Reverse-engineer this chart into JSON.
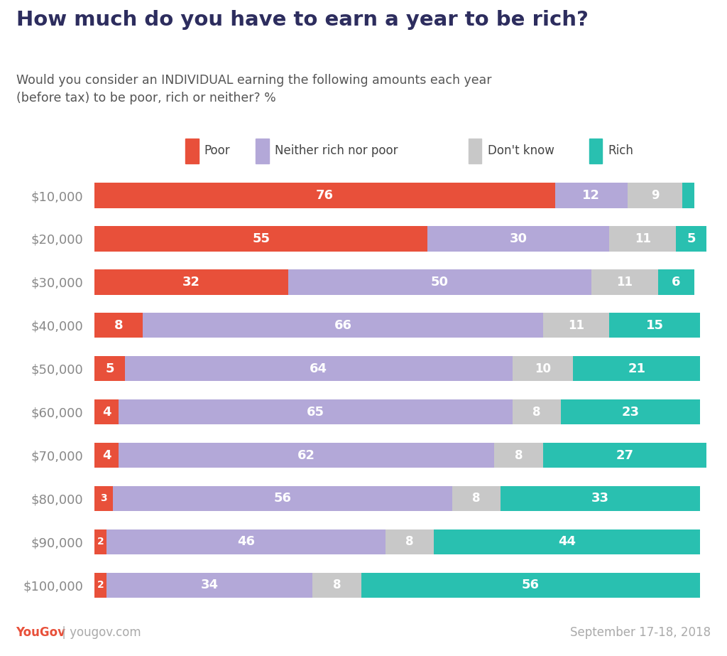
{
  "title": "How much do you have to earn a year to be rich?",
  "subtitle": "Would you consider an INDIVIDUAL earning the following amounts each year\n(before tax) to be poor, rich or neither? %",
  "categories": [
    "$10,000",
    "$20,000",
    "$30,000",
    "$40,000",
    "$50,000",
    "$60,000",
    "$70,000",
    "$80,000",
    "$90,000",
    "$100,000"
  ],
  "poor": [
    76,
    55,
    32,
    8,
    5,
    4,
    4,
    3,
    2,
    2
  ],
  "neither": [
    12,
    30,
    50,
    66,
    64,
    65,
    62,
    56,
    46,
    34
  ],
  "dontknow": [
    9,
    11,
    11,
    11,
    10,
    8,
    8,
    8,
    8,
    8
  ],
  "rich": [
    2,
    5,
    6,
    15,
    21,
    23,
    27,
    33,
    44,
    56
  ],
  "colors": {
    "poor": "#e8503a",
    "neither": "#b3a8d8",
    "dontknow": "#c8c8c8",
    "rich": "#29c0b0"
  },
  "header_bg": "#e8e8f0",
  "footer_left_you": "YouGov",
  "footer_left_rest": " | yougov.com",
  "footer_right": "September 17-18, 2018",
  "title_color": "#2d2d5e",
  "subtitle_color": "#555555",
  "ylabel_color": "#888888",
  "bar_xlim": 102
}
